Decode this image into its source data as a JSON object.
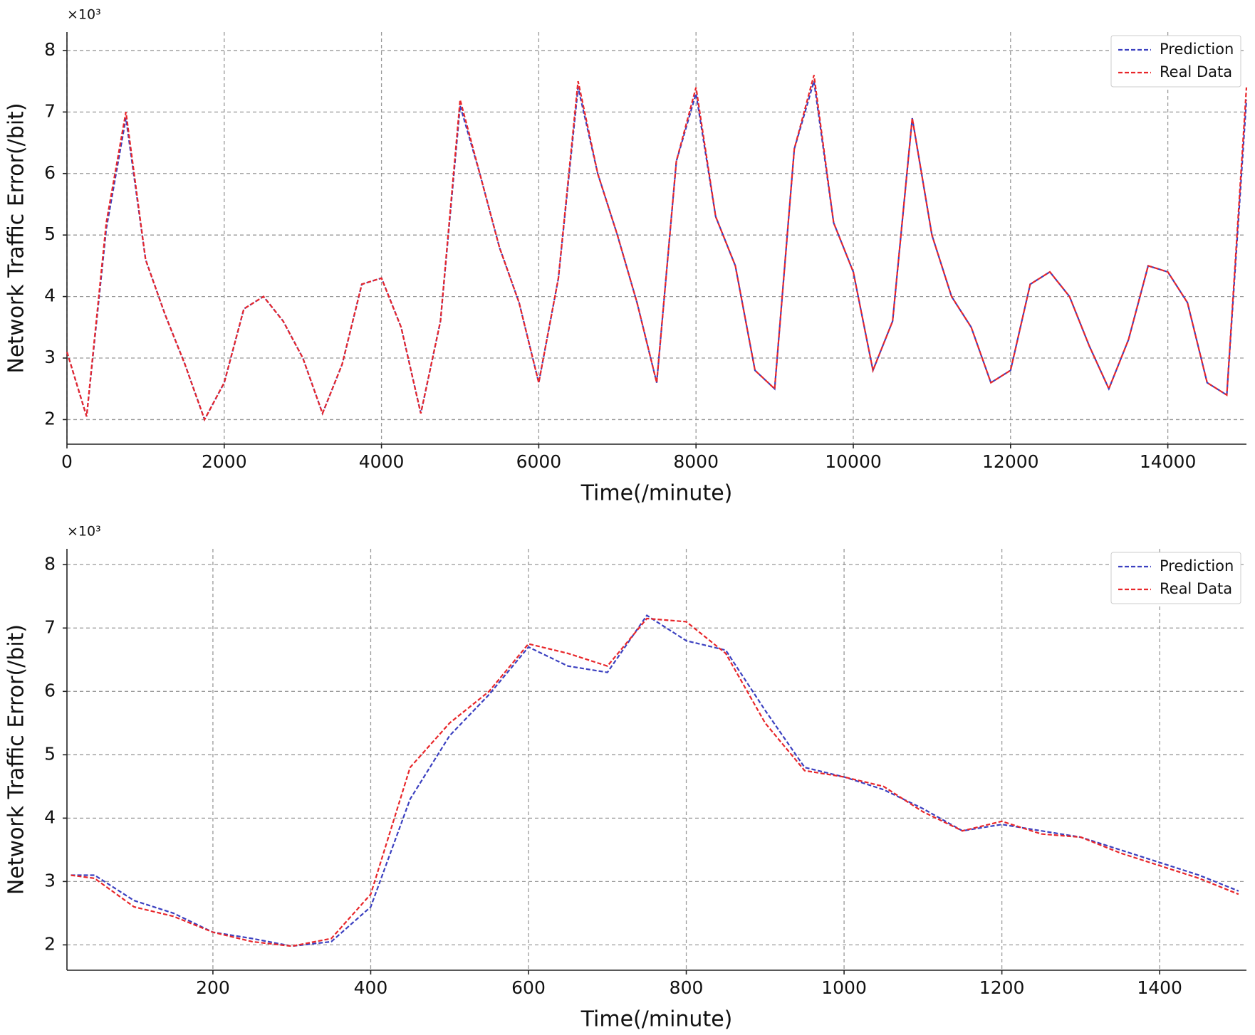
{
  "chart_data": [
    {
      "type": "line",
      "x_label": "Time(/minute)",
      "y_label": "Network Traffic Error(/bit)",
      "y_multiplier": "×10³",
      "xlim": [
        0,
        15000
      ],
      "xticks": [
        0,
        2000,
        4000,
        6000,
        8000,
        10000,
        12000,
        14000
      ],
      "ylim": [
        1.6,
        8.3
      ],
      "yticks": [
        2,
        3,
        4,
        5,
        6,
        7,
        8
      ],
      "grid": true,
      "legend": "upper right",
      "x": [
        0,
        250,
        500,
        750,
        1000,
        1250,
        1500,
        1750,
        2000,
        2250,
        2500,
        2750,
        3000,
        3250,
        3500,
        3750,
        4000,
        4250,
        4500,
        4750,
        5000,
        5250,
        5500,
        5750,
        6000,
        6250,
        6500,
        6750,
        7000,
        7250,
        7500,
        7750,
        8000,
        8250,
        8500,
        8750,
        9000,
        9250,
        9500,
        9750,
        10000,
        10250,
        10500,
        10750,
        11000,
        11250,
        11500,
        11750,
        12000,
        12250,
        12500,
        12750,
        13000,
        13250,
        13500,
        13750,
        14000,
        14250,
        14500,
        14750,
        15000
      ],
      "series": [
        {
          "name": "Prediction",
          "color": "#3b40c0",
          "values": [
            3.1,
            2.05,
            5.1,
            6.9,
            4.6,
            3.7,
            2.9,
            2.0,
            2.6,
            3.8,
            4.0,
            3.6,
            3.0,
            2.1,
            2.9,
            4.2,
            4.3,
            3.5,
            2.1,
            3.6,
            7.1,
            6.0,
            4.8,
            3.9,
            2.6,
            4.3,
            7.4,
            6.0,
            5.0,
            3.9,
            2.6,
            6.2,
            7.3,
            5.3,
            4.5,
            2.8,
            2.5,
            6.4,
            7.5,
            5.2,
            4.4,
            2.8,
            3.6,
            6.9,
            5.0,
            4.0,
            3.5,
            2.6,
            2.8,
            4.2,
            4.4,
            4.0,
            3.2,
            2.5,
            3.3,
            4.5,
            4.4,
            3.9,
            2.6,
            2.4,
            7.2
          ]
        },
        {
          "name": "Real Data",
          "color": "#e8262a",
          "values": [
            3.1,
            2.05,
            5.2,
            7.0,
            4.6,
            3.7,
            2.9,
            2.0,
            2.6,
            3.8,
            4.0,
            3.6,
            3.0,
            2.1,
            2.9,
            4.2,
            4.3,
            3.5,
            2.1,
            3.6,
            7.2,
            6.0,
            4.8,
            3.9,
            2.6,
            4.3,
            7.5,
            6.0,
            5.0,
            3.9,
            2.6,
            6.2,
            7.4,
            5.3,
            4.5,
            2.8,
            2.5,
            6.4,
            7.6,
            5.2,
            4.4,
            2.8,
            3.6,
            6.9,
            5.0,
            4.0,
            3.5,
            2.6,
            2.8,
            4.2,
            4.4,
            4.0,
            3.2,
            2.5,
            3.3,
            4.5,
            4.4,
            3.9,
            2.6,
            2.4,
            7.4
          ]
        }
      ]
    },
    {
      "type": "line",
      "x_label": "Time(/minute)",
      "y_label": "Network Traffic Error(/bit)",
      "y_multiplier": "×10³",
      "xlim": [
        15,
        1510
      ],
      "xticks": [
        200,
        400,
        600,
        800,
        1000,
        1200,
        1400
      ],
      "ylim": [
        1.6,
        8.25
      ],
      "yticks": [
        2,
        3,
        4,
        5,
        6,
        7,
        8
      ],
      "grid": true,
      "legend": "upper right",
      "x": [
        20,
        50,
        100,
        150,
        200,
        250,
        300,
        350,
        400,
        450,
        500,
        550,
        600,
        650,
        700,
        750,
        800,
        850,
        900,
        950,
        1000,
        1050,
        1100,
        1150,
        1200,
        1250,
        1300,
        1350,
        1400,
        1450,
        1500
      ],
      "series": [
        {
          "name": "Prediction",
          "color": "#3b40c0",
          "values": [
            3.1,
            3.1,
            2.7,
            2.5,
            2.2,
            2.1,
            1.98,
            2.05,
            2.6,
            4.3,
            5.3,
            5.95,
            6.7,
            6.4,
            6.3,
            7.2,
            6.8,
            6.65,
            5.7,
            4.8,
            4.65,
            4.45,
            4.15,
            3.8,
            3.9,
            3.8,
            3.7,
            3.5,
            3.3,
            3.1,
            2.85
          ]
        },
        {
          "name": "Real Data",
          "color": "#e8262a",
          "values": [
            3.1,
            3.05,
            2.6,
            2.45,
            2.2,
            2.05,
            1.98,
            2.1,
            2.8,
            4.8,
            5.5,
            6.0,
            6.75,
            6.6,
            6.4,
            7.15,
            7.1,
            6.6,
            5.5,
            4.75,
            4.65,
            4.5,
            4.1,
            3.8,
            3.95,
            3.75,
            3.7,
            3.45,
            3.25,
            3.05,
            2.8
          ]
        }
      ]
    }
  ]
}
